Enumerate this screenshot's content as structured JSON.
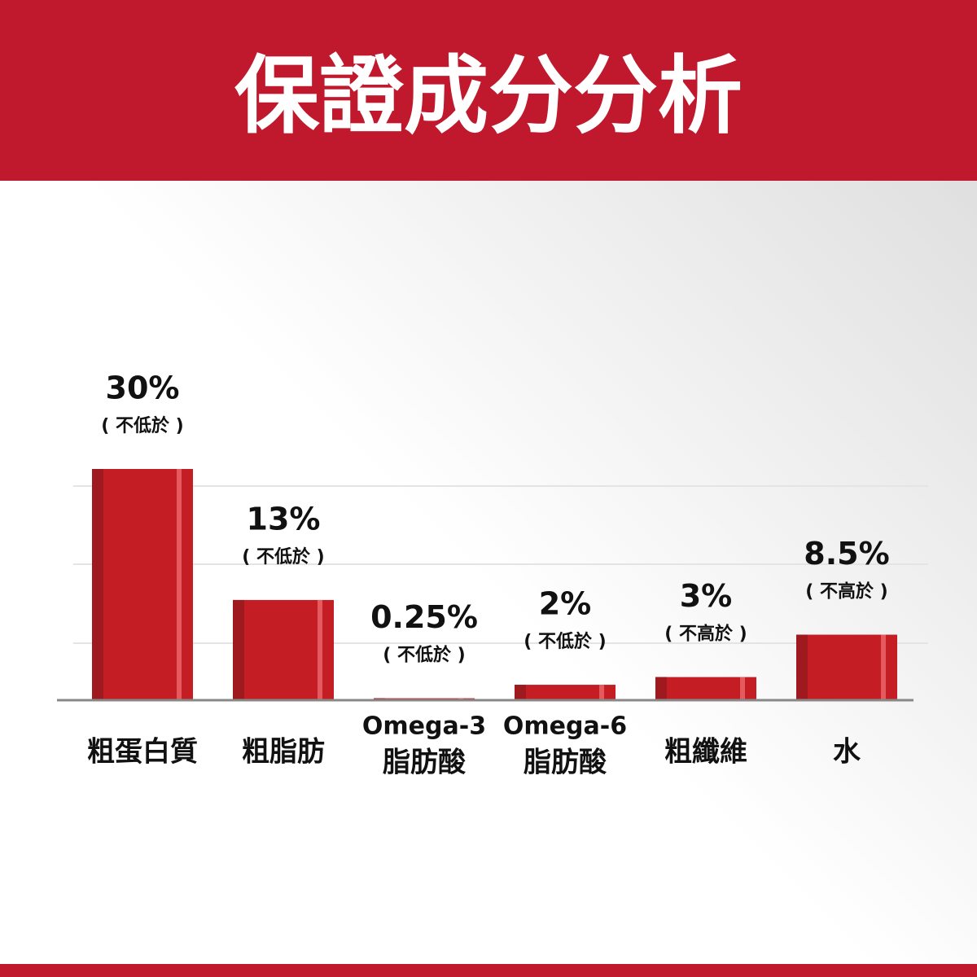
{
  "chart_data": {
    "type": "bar",
    "title": "保證成分分析",
    "categories": [
      "粗蛋白質",
      "粗脂肪",
      [
        "Omega-3",
        "脂肪酸"
      ],
      [
        "Omega-6",
        "脂肪酸"
      ],
      "粗纖維",
      "水"
    ],
    "values": [
      30,
      13,
      0.25,
      2,
      3,
      8.5
    ],
    "value_labels": [
      "30%",
      "13%",
      "0.25%",
      "2%",
      "3%",
      "8.5%"
    ],
    "annotations": [
      "( 不低於 )",
      "( 不低於 )",
      "( 不低於 )",
      "( 不低於 )",
      "( 不高於 )",
      "( 不高於 )"
    ],
    "color": "#c41e24"
  }
}
